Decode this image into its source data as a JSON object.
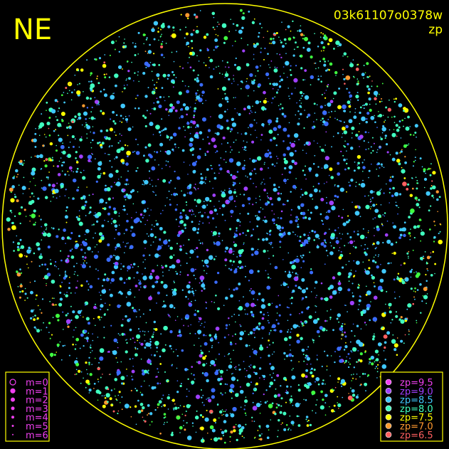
{
  "header": {
    "corner": "NE",
    "id": "03k61107o0378w",
    "subtitle": "zp"
  },
  "legend_m": {
    "items": [
      {
        "label": "m=0"
      },
      {
        "label": "m=1"
      },
      {
        "label": "m=2"
      },
      {
        "label": "m=3"
      },
      {
        "label": "m=4"
      },
      {
        "label": "m=5"
      },
      {
        "label": "m=6"
      }
    ]
  },
  "legend_zp": {
    "items": [
      {
        "label": "zp=9.5",
        "color": "#f040f0"
      },
      {
        "label": "zp=9.0",
        "color": "#a040ff"
      },
      {
        "label": "zp=8.5",
        "color": "#40c8ff"
      },
      {
        "label": "zp=8.0",
        "color": "#40ffc0"
      },
      {
        "label": "zp=7.5",
        "color": "#ffff00"
      },
      {
        "label": "zp=7.0",
        "color": "#ff9a30"
      },
      {
        "label": "zp=6.5",
        "color": "#ff6060"
      }
    ]
  }
}
